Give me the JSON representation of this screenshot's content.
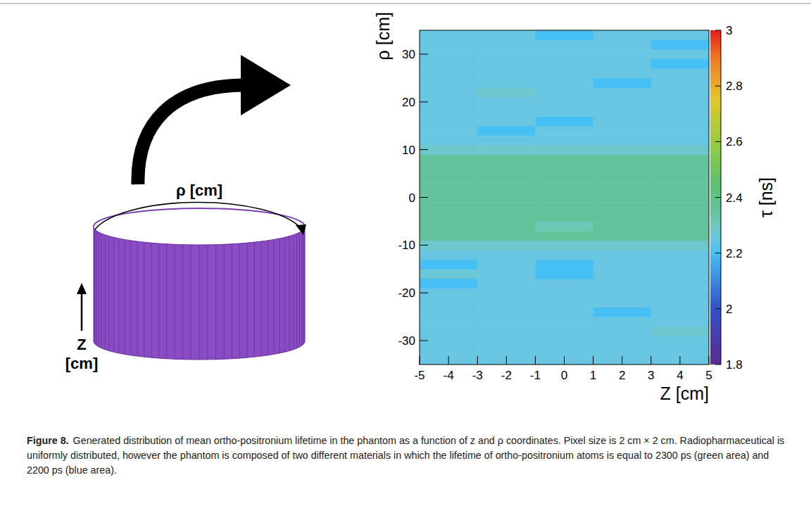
{
  "chart_data": {
    "type": "heatmap",
    "xlabel": "Z [cm]",
    "ylabel": "ρ [cm]",
    "xlim": [
      -5,
      5
    ],
    "ylim": [
      -35,
      35
    ],
    "xticks": [
      -5,
      -4,
      -3,
      -2,
      -1,
      0,
      1,
      2,
      3,
      4,
      5
    ],
    "yticks": [
      -30,
      -20,
      -10,
      0,
      10,
      20,
      30
    ],
    "x_bins": [
      -5,
      -3,
      -1,
      1,
      3,
      5
    ],
    "y_bins": [
      -35,
      -33,
      -31,
      -29,
      -27,
      -25,
      -23,
      -21,
      -19,
      -17,
      -15,
      -13,
      -11,
      -9,
      -7,
      -5,
      -3,
      -1,
      1,
      3,
      5,
      7,
      9,
      11,
      13,
      15,
      17,
      19,
      21,
      23,
      25,
      27,
      29,
      31,
      33,
      35
    ],
    "values": [
      [
        2.25,
        2.25,
        2.25,
        2.25,
        2.25
      ],
      [
        2.25,
        2.25,
        2.25,
        2.25,
        2.25
      ],
      [
        2.25,
        2.25,
        2.25,
        2.25,
        2.25
      ],
      [
        2.25,
        2.25,
        2.25,
        2.25,
        2.28
      ],
      [
        2.25,
        2.25,
        2.25,
        2.25,
        2.25
      ],
      [
        2.25,
        2.25,
        2.25,
        2.2,
        2.25
      ],
      [
        2.25,
        2.25,
        2.25,
        2.25,
        2.25
      ],
      [
        2.25,
        2.25,
        2.25,
        2.25,
        2.25
      ],
      [
        2.2,
        2.25,
        2.25,
        2.25,
        2.25
      ],
      [
        2.27,
        2.25,
        2.2,
        2.25,
        2.25
      ],
      [
        2.2,
        2.25,
        2.2,
        2.25,
        2.25
      ],
      [
        2.25,
        2.25,
        2.25,
        2.25,
        2.25
      ],
      [
        2.28,
        2.28,
        2.28,
        2.28,
        2.28
      ],
      [
        2.35,
        2.35,
        2.35,
        2.35,
        2.35
      ],
      [
        2.35,
        2.35,
        2.31,
        2.35,
        2.35
      ],
      [
        2.35,
        2.35,
        2.35,
        2.35,
        2.35
      ],
      [
        2.35,
        2.35,
        2.35,
        2.35,
        2.35
      ],
      [
        2.35,
        2.35,
        2.35,
        2.35,
        2.35
      ],
      [
        2.35,
        2.35,
        2.35,
        2.35,
        2.35
      ],
      [
        2.35,
        2.35,
        2.35,
        2.35,
        2.35
      ],
      [
        2.35,
        2.35,
        2.35,
        2.35,
        2.35
      ],
      [
        2.35,
        2.35,
        2.35,
        2.35,
        2.35
      ],
      [
        2.28,
        2.28,
        2.28,
        2.28,
        2.28
      ],
      [
        2.25,
        2.25,
        2.25,
        2.25,
        2.25
      ],
      [
        2.25,
        2.2,
        2.25,
        2.25,
        2.25
      ],
      [
        2.25,
        2.25,
        2.2,
        2.25,
        2.25
      ],
      [
        2.25,
        2.25,
        2.25,
        2.25,
        2.25
      ],
      [
        2.25,
        2.25,
        2.25,
        2.25,
        2.25
      ],
      [
        2.25,
        2.28,
        2.25,
        2.25,
        2.25
      ],
      [
        2.25,
        2.25,
        2.25,
        2.2,
        2.25
      ],
      [
        2.25,
        2.25,
        2.25,
        2.25,
        2.25
      ],
      [
        2.25,
        2.25,
        2.25,
        2.25,
        2.2
      ],
      [
        2.25,
        2.25,
        2.25,
        2.25,
        2.25
      ],
      [
        2.25,
        2.25,
        2.25,
        2.25,
        2.2
      ],
      [
        2.25,
        2.25,
        2.2,
        2.25,
        2.25
      ]
    ],
    "colorbar": {
      "label": "τ [ns]",
      "range": [
        1.8,
        3
      ],
      "ticks": [
        1.8,
        2,
        2.2,
        2.4,
        2.6,
        2.8,
        3
      ]
    }
  },
  "illustration": {
    "circumference_label": "ρ [cm]",
    "z_label": "Z [cm]"
  },
  "caption": {
    "label": "Figure 8.",
    "text": "Generated distribution of mean ortho-positronium lifetime in the phantom as a function of z and ρ coordinates. Pixel size is 2 cm × 2 cm. Radiopharmaceutical is uniformly distributed, however the phantom is composed of two different materials in which the lifetime of ortho-positronium atoms is equal to 2300 ps (green area) and 2200 ps (blue area)."
  }
}
